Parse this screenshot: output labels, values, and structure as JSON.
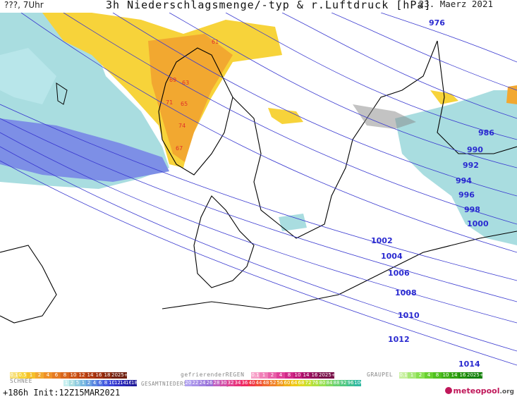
{
  "header": {
    "top_left": "???, 7Uhr",
    "title": "3h Niederschlagsmenge/-typ & r.Luftdruck [hPa]",
    "date": "23. Maerz 2021"
  },
  "map": {
    "isobar_labels": [
      "976",
      "986",
      "990",
      "992",
      "994",
      "996",
      "998",
      "1000",
      "1002",
      "1004",
      "1006",
      "1008",
      "1010",
      "1012",
      "1014"
    ],
    "precip_labels": [
      "61",
      "63",
      "65",
      "67",
      "69",
      "71",
      "74"
    ]
  },
  "legend": {
    "rain_scale": [
      "0.1",
      "0.5",
      "1",
      "2",
      "4",
      "6",
      "8",
      "10",
      "12",
      "14",
      "16",
      "18",
      "2025+"
    ],
    "freezing_label": "gefrierenderREGEN",
    "freezing_scale": [
      "0.1",
      "1",
      "2",
      "4",
      "8",
      "10",
      "14",
      "16",
      "2025+"
    ],
    "graupel_label": "GRAUPEL",
    "graupel_scale": [
      "0.1",
      "1",
      "2",
      "4",
      "8",
      "10",
      "14",
      "16",
      "2025+"
    ],
    "snow_label": "SCHNEE",
    "snow_scale": [
      "1",
      "2",
      "5",
      "1",
      "2",
      "4",
      "6",
      "8",
      "10",
      "12",
      "14",
      "16",
      "18"
    ],
    "total_label": "GESAMTNIEDERSCHLAG 3h [kg/m²]",
    "total_scale": [
      "20",
      "22",
      "24",
      "26",
      "28",
      "30",
      "32",
      "34",
      "36",
      "40",
      "44",
      "48",
      "52",
      "56",
      "60",
      "64",
      "68",
      "72",
      "76",
      "80",
      "84",
      "88",
      "92",
      "96",
      "100"
    ]
  },
  "footer": {
    "run": "+186h Init:12Z15MAR2021",
    "logo": "meteopool",
    "logo_suffix": ".org"
  }
}
